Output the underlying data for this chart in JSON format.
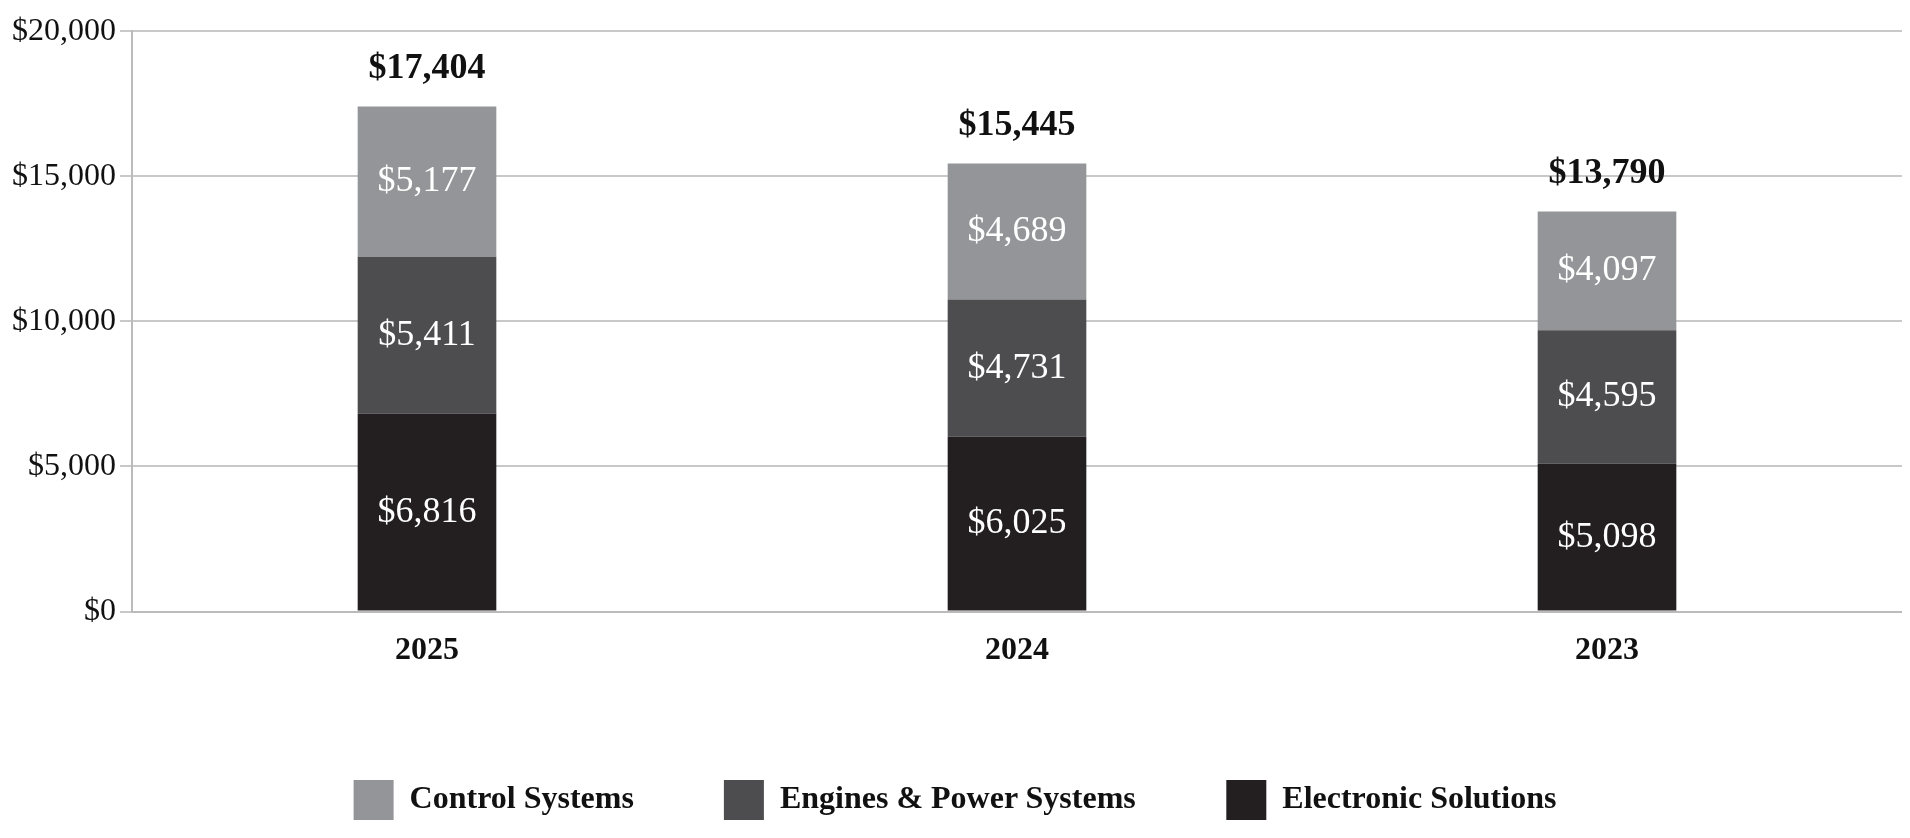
{
  "chart_data": {
    "type": "bar",
    "stacked": true,
    "categories": [
      "2025",
      "2024",
      "2023"
    ],
    "series": [
      {
        "name": "Electronic Solutions",
        "color": "#231f20",
        "values": [
          6816,
          6025,
          5098
        ],
        "value_labels": [
          "$6,816",
          "$6,025",
          "$5,098"
        ]
      },
      {
        "name": "Engines & Power Systems",
        "color": "#4d4d4f",
        "values": [
          5411,
          4731,
          4595
        ],
        "value_labels": [
          "$5,411",
          "$4,731",
          "$4,595"
        ]
      },
      {
        "name": "Control Systems",
        "color": "#939598",
        "values": [
          5177,
          4689,
          4097
        ],
        "value_labels": [
          "$5,177",
          "$4,689",
          "$4,097"
        ]
      }
    ],
    "totals": [
      "$17,404",
      "$15,445",
      "$13,790"
    ],
    "ylim": [
      0,
      20000
    ],
    "yticks": [
      {
        "value": 0,
        "label": "$0"
      },
      {
        "value": 5000,
        "label": "$5,000"
      },
      {
        "value": 10000,
        "label": "$10,000"
      },
      {
        "value": 15000,
        "label": "$15,000"
      },
      {
        "value": 20000,
        "label": "$20,000"
      }
    ],
    "grid": "y",
    "legend": "bottom"
  }
}
